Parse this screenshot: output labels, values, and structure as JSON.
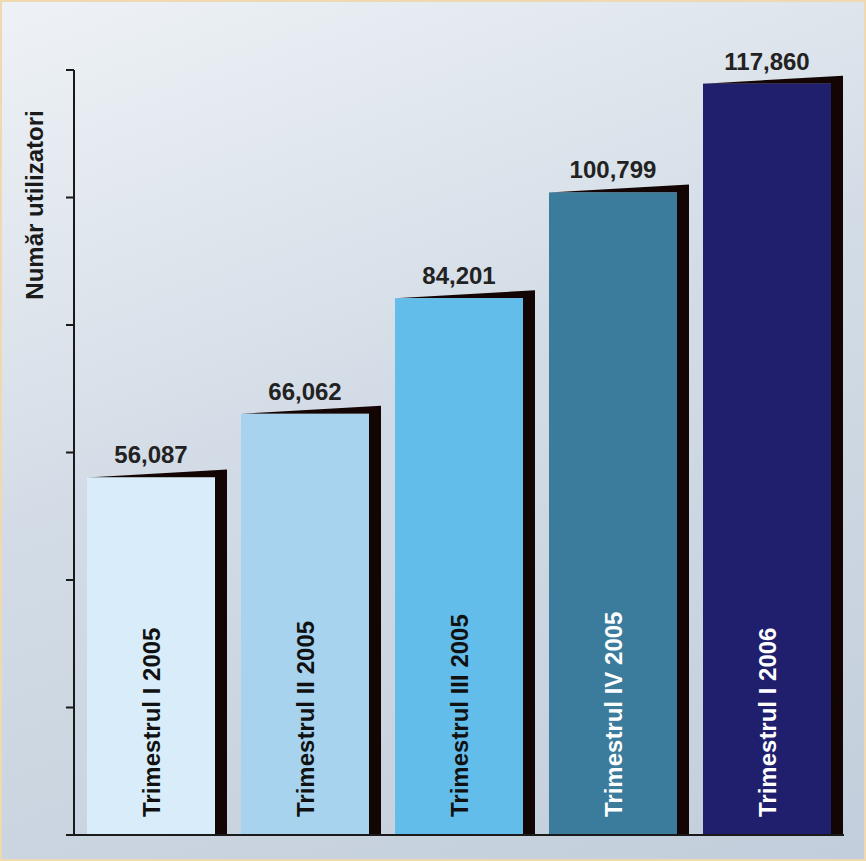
{
  "chart_data": {
    "type": "bar",
    "ylabel": "Număr utilizatori",
    "categories": [
      "Trimestrul I 2005",
      "Trimestrul II 2005",
      "Trimestrul III 2005",
      "Trimestrul IV 2005",
      "Trimestrul I 2006"
    ],
    "values": [
      56087,
      66062,
      84201,
      100799,
      117860
    ],
    "value_labels": [
      "56,087",
      "66,062",
      "84,201",
      "100,799",
      "117,860"
    ],
    "colors": [
      "#d8edf9",
      "#a8d3ef",
      "#63bdea",
      "#3b7b9c",
      "#1f1f6e"
    ],
    "ylim": [
      0,
      120000
    ],
    "yticks": [
      0,
      20000,
      40000,
      60000,
      80000,
      100000,
      120000
    ],
    "data_labels": true,
    "tick_labels": false,
    "grid": false
  }
}
